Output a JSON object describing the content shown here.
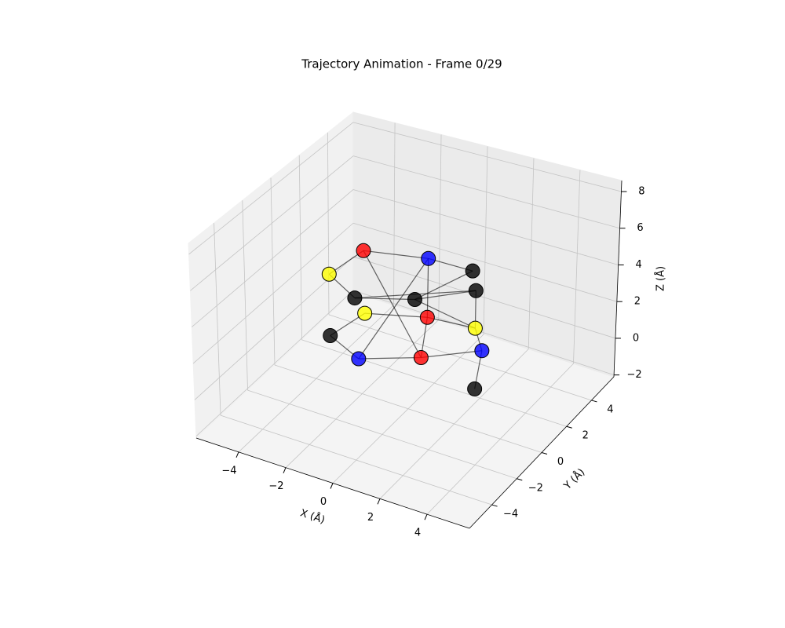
{
  "chart_data": {
    "type": "scatter3d",
    "title": "Trajectory Animation - Frame 0/29",
    "xlabel": "X (Å)",
    "ylabel": "Y (Å)",
    "zlabel": "Z (Å)",
    "x": [
      -2.5,
      -0.3,
      1.6,
      -2.8,
      1.2,
      -2.3,
      -0.3,
      -1.3,
      0.8,
      2.3,
      -2.2,
      2.6,
      -1.0,
      1.1,
      3.4
    ],
    "y": [
      1,
      2,
      2,
      -1,
      3,
      0,
      1,
      -1,
      0,
      1,
      -2,
      1,
      -2,
      -1,
      -1
    ],
    "z": [
      5.0,
      4.7,
      4.7,
      4.9,
      2.8,
      3.1,
      3.1,
      3.3,
      3.2,
      2.5,
      2.4,
      1.4,
      1.6,
      1.8,
      1.0
    ],
    "colors": [
      "red",
      "blue",
      "black",
      "yellow",
      "black",
      "black",
      "black",
      "yellow",
      "red",
      "yellow",
      "black",
      "blue",
      "blue",
      "red",
      "black"
    ],
    "bonds": [
      [
        0,
        1
      ],
      [
        0,
        3
      ],
      [
        0,
        13
      ],
      [
        1,
        2
      ],
      [
        1,
        12
      ],
      [
        1,
        8
      ],
      [
        2,
        6
      ],
      [
        3,
        5
      ],
      [
        5,
        6
      ],
      [
        5,
        4
      ],
      [
        6,
        4
      ],
      [
        4,
        9
      ],
      [
        7,
        8
      ],
      [
        7,
        10
      ],
      [
        8,
        9
      ],
      [
        8,
        13
      ],
      [
        9,
        11
      ],
      [
        10,
        12
      ],
      [
        12,
        13
      ],
      [
        13,
        11
      ],
      [
        11,
        14
      ],
      [
        6,
        9
      ]
    ],
    "xlim": [
      -5.8,
      5.8
    ],
    "ylim": [
      -5.8,
      5.8
    ],
    "zlim": [
      -2.1,
      8.6
    ],
    "xticks": [
      {
        "value": -4,
        "label": "−4"
      },
      {
        "value": -2,
        "label": "−2"
      },
      0,
      2,
      4
    ],
    "yticks": [
      {
        "value": -4,
        "label": "−4"
      },
      {
        "value": -2,
        "label": "−2"
      },
      0,
      2,
      4
    ],
    "zticks": [
      {
        "value": -2,
        "label": "−2"
      },
      0,
      2,
      4,
      6,
      8
    ],
    "grid": true
  }
}
